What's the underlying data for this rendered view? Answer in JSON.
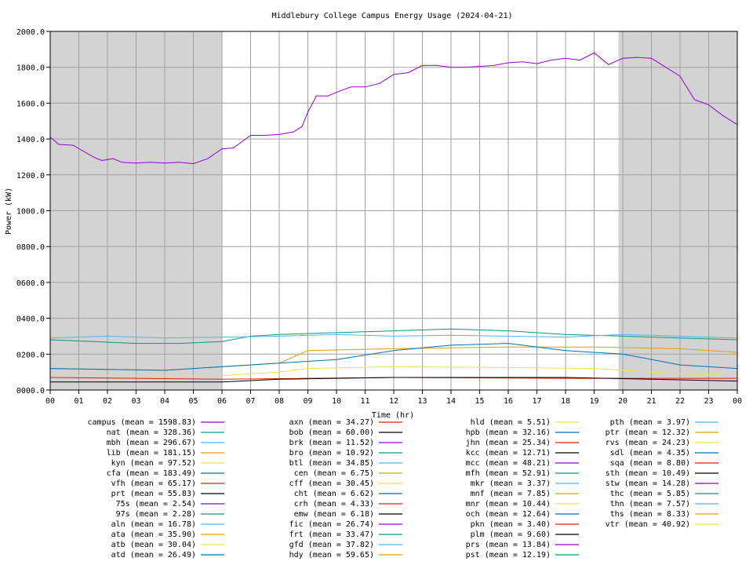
{
  "chart_data": {
    "type": "line",
    "title": "Middlebury College Campus Energy Usage (2024-04-21)",
    "xlabel": "Time (hr)",
    "ylabel": "Power (kW)",
    "xlim": [
      0,
      24
    ],
    "ylim": [
      0,
      2000
    ],
    "grid": true,
    "legend_placement": "bottom",
    "x_ticks": [
      "00",
      "01",
      "02",
      "03",
      "04",
      "05",
      "06",
      "07",
      "08",
      "09",
      "10",
      "11",
      "12",
      "13",
      "14",
      "15",
      "16",
      "17",
      "18",
      "19",
      "20",
      "21",
      "22",
      "23",
      "00"
    ],
    "y_ticks": [
      "0000.0",
      "0200.0",
      "0400.0",
      "0600.0",
      "0800.0",
      "1000.0",
      "1200.0",
      "1400.0",
      "1600.0",
      "1800.0",
      "2000.0"
    ],
    "night_shading": [
      [
        0,
        6
      ],
      [
        19.85,
        24
      ]
    ],
    "series": [
      {
        "name": "campus (mean = 1598.83)",
        "color": "#9400d3",
        "points": [
          [
            0,
            1410
          ],
          [
            0.3,
            1370
          ],
          [
            0.8,
            1365
          ],
          [
            1.5,
            1300
          ],
          [
            1.8,
            1280
          ],
          [
            2.2,
            1290
          ],
          [
            2.5,
            1270
          ],
          [
            3,
            1265
          ],
          [
            3.5,
            1270
          ],
          [
            4,
            1265
          ],
          [
            4.5,
            1270
          ],
          [
            5,
            1262
          ],
          [
            5.5,
            1290
          ],
          [
            6,
            1345
          ],
          [
            6.4,
            1350
          ],
          [
            7,
            1420
          ],
          [
            7.5,
            1420
          ],
          [
            8,
            1425
          ],
          [
            8.5,
            1440
          ],
          [
            8.8,
            1470
          ],
          [
            9,
            1550
          ],
          [
            9.3,
            1640
          ],
          [
            9.7,
            1640
          ],
          [
            10,
            1660
          ],
          [
            10.5,
            1690
          ],
          [
            11,
            1690
          ],
          [
            11.5,
            1710
          ],
          [
            12,
            1760
          ],
          [
            12.5,
            1770
          ],
          [
            13,
            1810
          ],
          [
            13.5,
            1810
          ],
          [
            14,
            1800
          ],
          [
            14.5,
            1800
          ],
          [
            15,
            1805
          ],
          [
            15.5,
            1810
          ],
          [
            16,
            1825
          ],
          [
            16.5,
            1830
          ],
          [
            17,
            1820
          ],
          [
            17.5,
            1840
          ],
          [
            18,
            1850
          ],
          [
            18.5,
            1840
          ],
          [
            19,
            1880
          ],
          [
            19.5,
            1815
          ],
          [
            20,
            1850
          ],
          [
            20.5,
            1855
          ],
          [
            21,
            1850
          ],
          [
            21.5,
            1800
          ],
          [
            22,
            1750
          ],
          [
            22.5,
            1620
          ],
          [
            23,
            1590
          ],
          [
            23.5,
            1530
          ],
          [
            24,
            1480
          ]
        ]
      },
      {
        "name": "nat (mean = 328.36)",
        "color": "#009e73",
        "points": [
          [
            0,
            280
          ],
          [
            1.5,
            270
          ],
          [
            3,
            260
          ],
          [
            4.5,
            260
          ],
          [
            6,
            270
          ],
          [
            7,
            300
          ],
          [
            8,
            310
          ],
          [
            10,
            320
          ],
          [
            12,
            330
          ],
          [
            14,
            340
          ],
          [
            16,
            330
          ],
          [
            18,
            310
          ],
          [
            20,
            300
          ],
          [
            22,
            290
          ],
          [
            24,
            280
          ]
        ]
      },
      {
        "name": "mbh (mean = 296.67)",
        "color": "#56b4e9",
        "points": [
          [
            0,
            290
          ],
          [
            2,
            300
          ],
          [
            4,
            290
          ],
          [
            6,
            295
          ],
          [
            8,
            300
          ],
          [
            10,
            310
          ],
          [
            12,
            300
          ],
          [
            14,
            305
          ],
          [
            16,
            300
          ],
          [
            18,
            295
          ],
          [
            20,
            310
          ],
          [
            22,
            300
          ],
          [
            24,
            290
          ]
        ]
      },
      {
        "name": "lib (mean = 181.15)",
        "color": "#e69f00",
        "points": [
          [
            0,
            120
          ],
          [
            4,
            110
          ],
          [
            8,
            150
          ],
          [
            9,
            220
          ],
          [
            12,
            230
          ],
          [
            16,
            240
          ],
          [
            19,
            240
          ],
          [
            22,
            230
          ],
          [
            24,
            210
          ]
        ]
      },
      {
        "name": "kyn (mean = 97.52)",
        "color": "#f0e442",
        "points": [
          [
            0,
            80
          ],
          [
            6,
            80
          ],
          [
            8,
            100
          ],
          [
            9,
            120
          ],
          [
            12,
            130
          ],
          [
            16,
            125
          ],
          [
            19,
            120
          ],
          [
            22,
            90
          ],
          [
            24,
            80
          ]
        ]
      },
      {
        "name": "cfa (mean = 183.49)",
        "color": "#0072b2",
        "points": [
          [
            0,
            120
          ],
          [
            4,
            110
          ],
          [
            8,
            150
          ],
          [
            10,
            170
          ],
          [
            12,
            220
          ],
          [
            14,
            250
          ],
          [
            16,
            260
          ],
          [
            18,
            220
          ],
          [
            20,
            200
          ],
          [
            22,
            140
          ],
          [
            24,
            120
          ]
        ]
      },
      {
        "name": "vfh (mean = 65.17)",
        "color": "#e51e10",
        "points": [
          [
            0,
            70
          ],
          [
            6,
            60
          ],
          [
            12,
            70
          ],
          [
            18,
            65
          ],
          [
            24,
            65
          ]
        ]
      },
      {
        "name": "prt (mean = 55.83)",
        "color": "#000000",
        "points": [
          [
            0,
            45
          ],
          [
            6,
            45
          ],
          [
            8,
            60
          ],
          [
            12,
            70
          ],
          [
            18,
            70
          ],
          [
            24,
            50
          ]
        ]
      }
    ],
    "legend_columns": [
      [
        "campus (mean = 1598.83)",
        "nat (mean = 328.36)",
        "mbh (mean = 296.67)",
        "lib (mean = 181.15)",
        "kyn (mean = 97.52)",
        "cfa (mean = 183.49)",
        "vfh (mean = 65.17)",
        "prt (mean = 55.83)",
        "75s (mean = 2.54)",
        "97s (mean = 2.28)",
        "aln (mean = 16.78)",
        "ata (mean = 35.90)",
        "atb (mean = 30.04)",
        "atd (mean = 26.49)"
      ],
      [
        "axn (mean = 34.27)",
        "bob (mean = 60.00)",
        "brk (mean = 11.52)",
        "bro (mean = 10.92)",
        "btl (mean = 34.85)",
        "cen (mean = 6.75)",
        "cff (mean = 30.45)",
        "cht (mean = 6.62)",
        "crh (mean = 4.33)",
        "emw (mean = 6.18)",
        "fic (mean = 26.74)",
        "frt (mean = 33.47)",
        "gfd (mean = 37.82)",
        "hdy (mean = 59.65)"
      ],
      [
        "hld (mean = 5.51)",
        "hpb (mean = 32.16)",
        "jhn (mean = 25.34)",
        "kcc (mean = 12.71)",
        "mcc (mean = 48.21)",
        "mfh (mean = 52.91)",
        "mkr (mean = 3.37)",
        "mnf (mean = 7.85)",
        "mnr (mean = 10.44)",
        "och (mean = 12.64)",
        "pkn (mean = 3.40)",
        "plm (mean = 9.60)",
        "prs (mean = 13.84)",
        "pst (mean = 12.19)"
      ],
      [
        "pth (mean = 3.97)",
        "ptr (mean = 12.32)",
        "rvs (mean = 24.23)",
        "sdl (mean = 4.35)",
        "sqa (mean = 8.80)",
        "sth (mean = 10.49)",
        "stw (mean = 14.28)",
        "thc (mean = 5.85)",
        "thn (mean = 7.57)",
        "ths (mean = 8.33)",
        "vtr (mean = 40.92)"
      ]
    ],
    "legend_colors": [
      "#9400d3",
      "#009e73",
      "#56b4e9",
      "#e69f00",
      "#f0e442",
      "#0072b2",
      "#e51e10",
      "#000000"
    ]
  }
}
